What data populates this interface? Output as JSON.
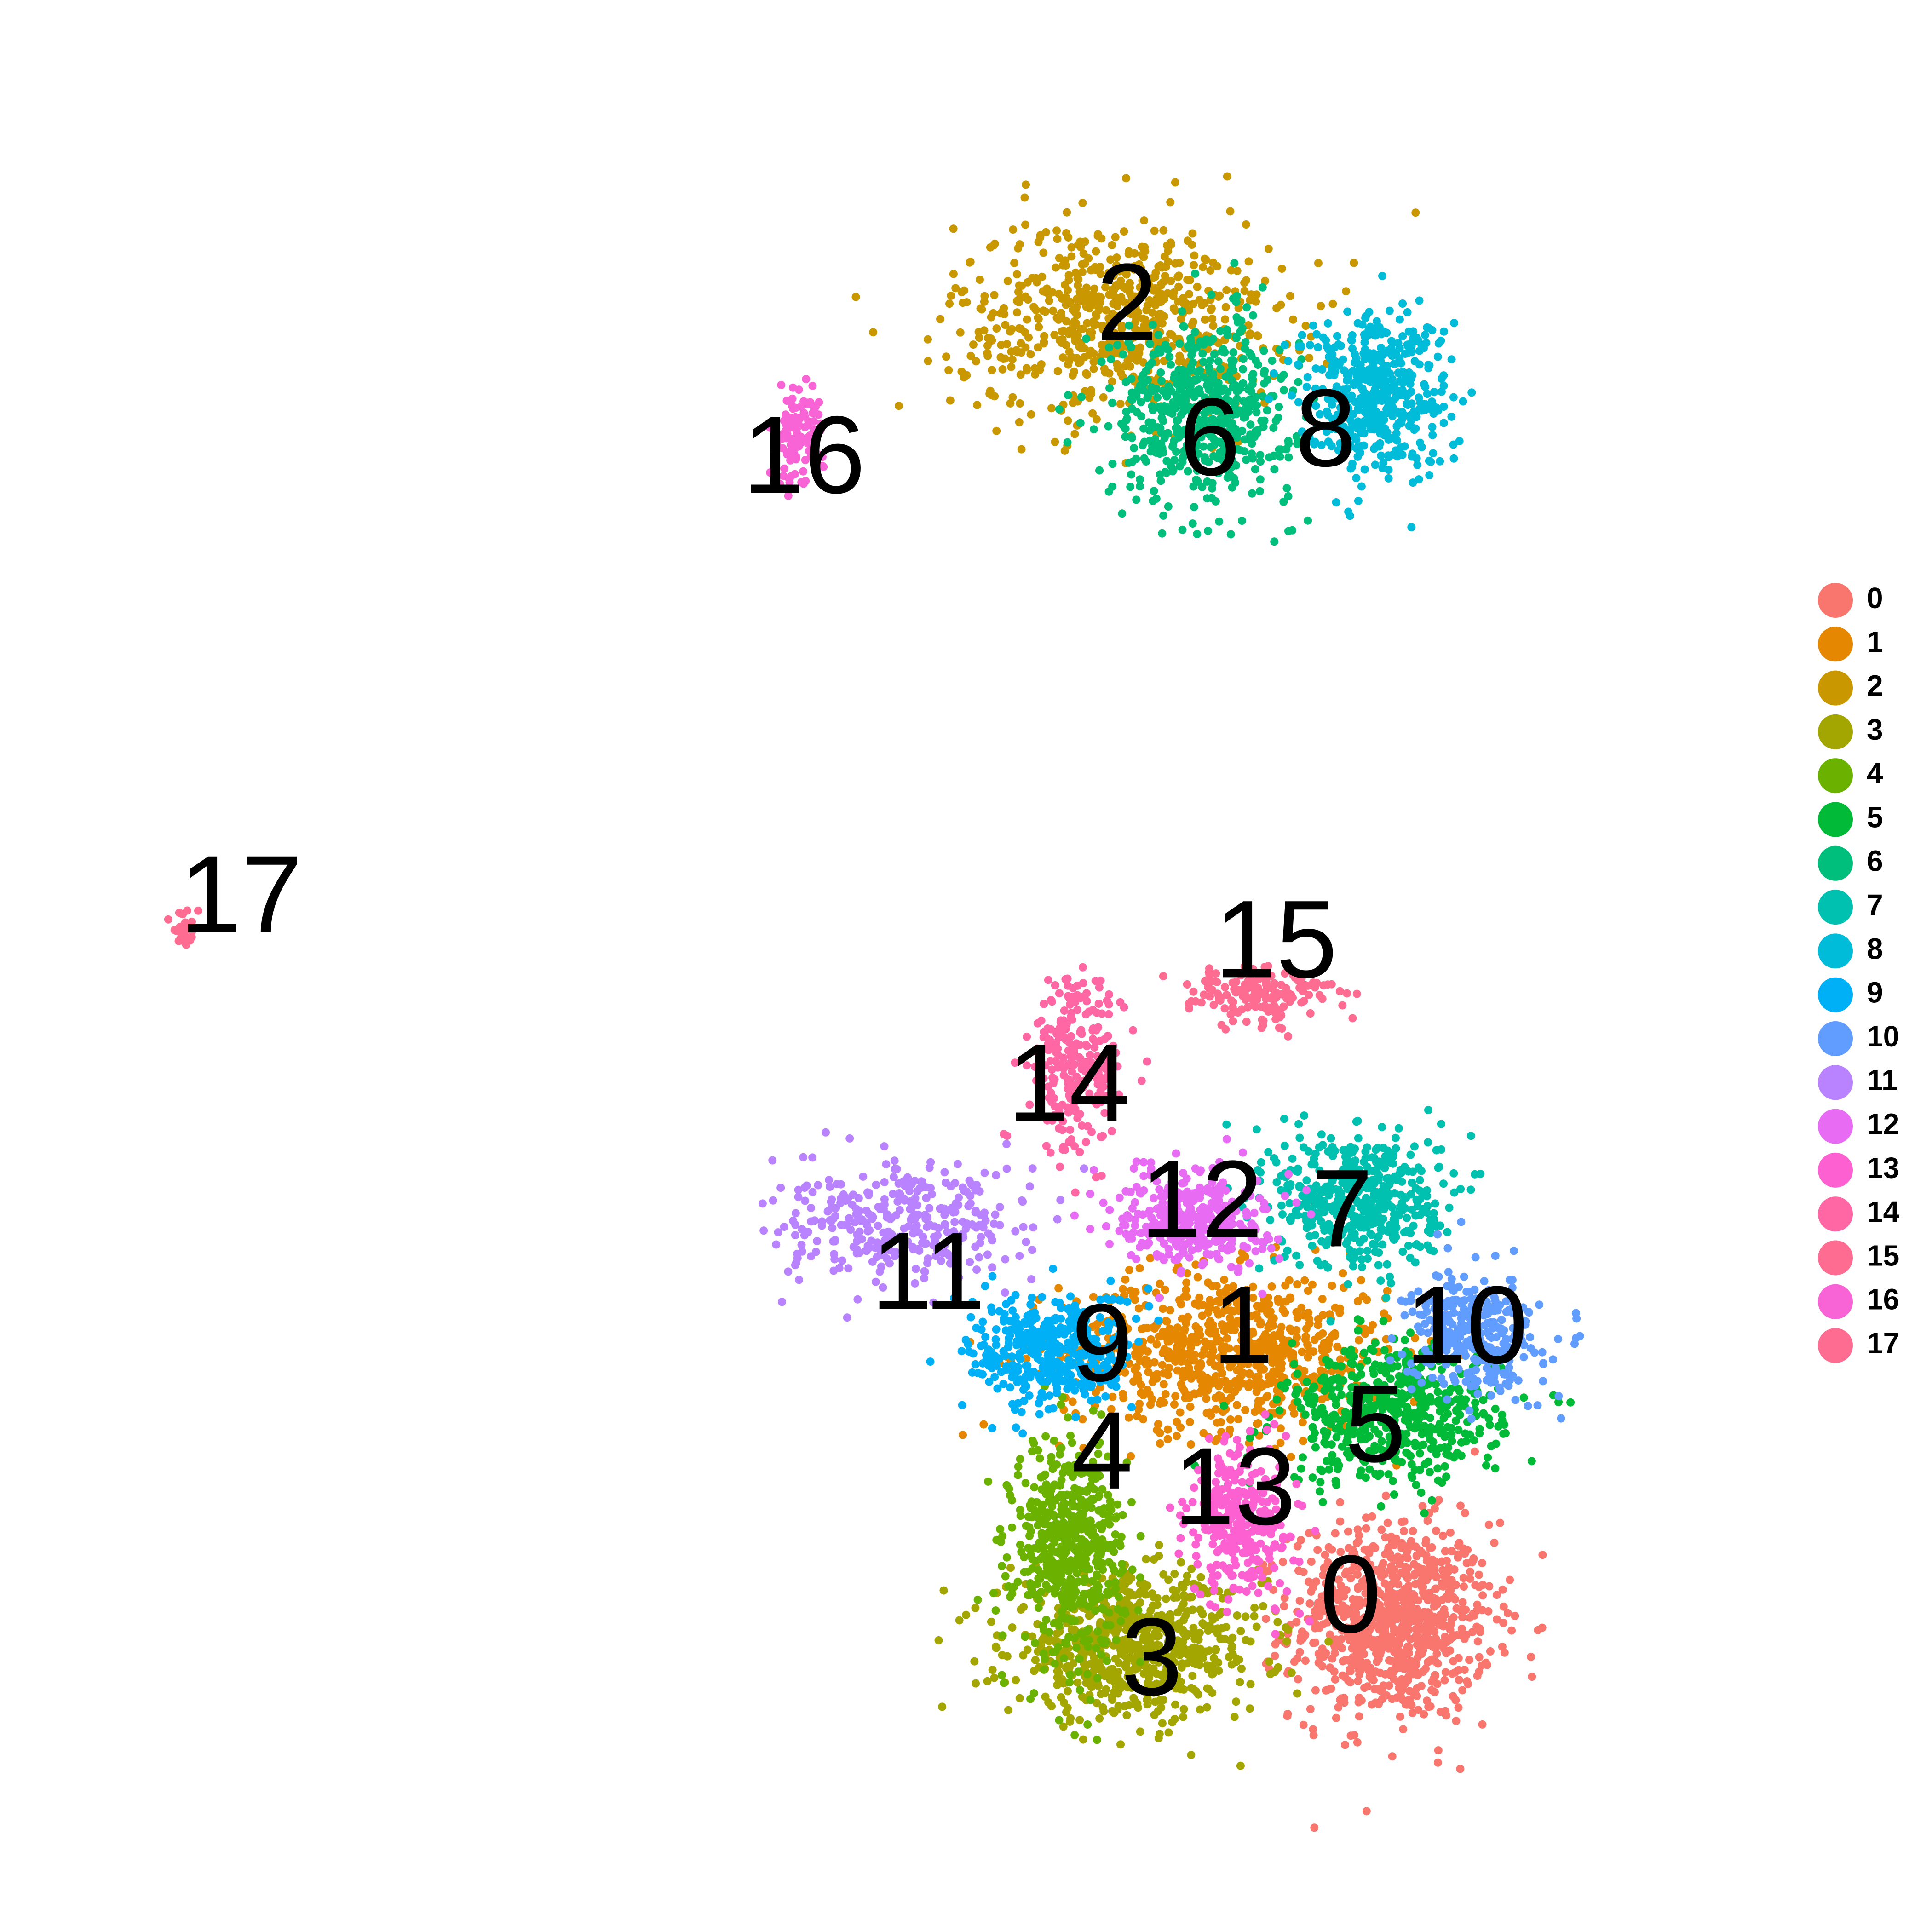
{
  "chart_data": {
    "type": "scatter",
    "title": "",
    "xlabel": "",
    "ylabel": "",
    "xlim": [
      0,
      100
    ],
    "ylim": [
      0,
      100
    ],
    "grid": false,
    "axes_visible": false,
    "legend_placement": "right",
    "clusters": [
      {
        "name": "0",
        "color": "#F8766D",
        "center": [
          78.5,
          13.5
        ],
        "spread": [
          5.5,
          5.0
        ],
        "count": 900
      },
      {
        "name": "1",
        "color": "#E58700",
        "center": [
          68.5,
          28.5
        ],
        "spread": [
          9.0,
          4.0
        ],
        "count": 800
      },
      {
        "name": "2",
        "color": "#C99800",
        "center": [
          62.0,
          86.0
        ],
        "spread": [
          9.0,
          5.0
        ],
        "count": 700
      },
      {
        "name": "3",
        "color": "#A3A500",
        "center": [
          63.0,
          12.0
        ],
        "spread": [
          7.0,
          3.5
        ],
        "count": 700
      },
      {
        "name": "4",
        "color": "#6BB100",
        "center": [
          59.0,
          17.5
        ],
        "spread": [
          3.0,
          5.5
        ],
        "count": 550
      },
      {
        "name": "5",
        "color": "#00BA38",
        "center": [
          78.5,
          25.0
        ],
        "spread": [
          6.0,
          3.5
        ],
        "count": 550
      },
      {
        "name": "6",
        "color": "#00BF7D",
        "center": [
          67.0,
          81.0
        ],
        "spread": [
          5.0,
          4.5
        ],
        "count": 550
      },
      {
        "name": "7",
        "color": "#00C0AF",
        "center": [
          76.5,
          37.0
        ],
        "spread": [
          4.5,
          3.5
        ],
        "count": 500
      },
      {
        "name": "8",
        "color": "#00BCD8",
        "center": [
          77.5,
          82.0
        ],
        "spread": [
          4.0,
          4.0
        ],
        "count": 500
      },
      {
        "name": "9",
        "color": "#00B0F6",
        "center": [
          58.0,
          28.5
        ],
        "spread": [
          4.5,
          3.0
        ],
        "count": 400
      },
      {
        "name": "10",
        "color": "#619CFF",
        "center": [
          83.5,
          29.5
        ],
        "spread": [
          3.5,
          3.0
        ],
        "count": 350
      },
      {
        "name": "11",
        "color": "#B983FF",
        "center": [
          49.0,
          35.5
        ],
        "spread": [
          7.0,
          3.0
        ],
        "count": 350
      },
      {
        "name": "12",
        "color": "#E76BF3",
        "center": [
          66.5,
          36.0
        ],
        "spread": [
          4.0,
          2.5
        ],
        "count": 350
      },
      {
        "name": "13",
        "color": "#FD61D1",
        "center": [
          69.5,
          19.0
        ],
        "spread": [
          3.0,
          4.0
        ],
        "count": 300
      },
      {
        "name": "14",
        "color": "#FF67A4",
        "center": [
          59.5,
          44.5
        ],
        "spread": [
          2.5,
          4.5
        ],
        "count": 250
      },
      {
        "name": "15",
        "color": "#FF6C91",
        "center": [
          70.5,
          48.5
        ],
        "spread": [
          4.0,
          1.5
        ],
        "count": 160
      },
      {
        "name": "16",
        "color": "#F863D6",
        "center": [
          42.5,
          79.5
        ],
        "spread": [
          1.5,
          2.5
        ],
        "count": 120
      },
      {
        "name": "17",
        "color": "#FF6C91",
        "center": [
          5.5,
          52.0
        ],
        "spread": [
          0.6,
          0.8
        ],
        "count": 40
      }
    ],
    "labels": [
      {
        "text": "0",
        "x": 76.0,
        "y": 14.5
      },
      {
        "text": "1",
        "x": 69.5,
        "y": 29.5
      },
      {
        "text": "2",
        "x": 62.5,
        "y": 86.5
      },
      {
        "text": "3",
        "x": 64.0,
        "y": 11.0
      },
      {
        "text": "4",
        "x": 61.0,
        "y": 22.5
      },
      {
        "text": "5",
        "x": 77.5,
        "y": 24.0
      },
      {
        "text": "6",
        "x": 67.5,
        "y": 79.0
      },
      {
        "text": "7",
        "x": 75.5,
        "y": 36.0
      },
      {
        "text": "8",
        "x": 74.5,
        "y": 79.5
      },
      {
        "text": "9",
        "x": 61.0,
        "y": 28.5
      },
      {
        "text": "10",
        "x": 83.0,
        "y": 29.5
      },
      {
        "text": "11",
        "x": 50.5,
        "y": 32.5
      },
      {
        "text": "12",
        "x": 67.0,
        "y": 36.5
      },
      {
        "text": "13",
        "x": 69.0,
        "y": 20.5
      },
      {
        "text": "14",
        "x": 59.0,
        "y": 43.0
      },
      {
        "text": "15",
        "x": 71.5,
        "y": 51.0
      },
      {
        "text": "16",
        "x": 43.0,
        "y": 78.0
      },
      {
        "text": "17",
        "x": 9.0,
        "y": 53.5
      }
    ],
    "legend": [
      {
        "label": "0",
        "color": "#F8766D"
      },
      {
        "label": "1",
        "color": "#E58700"
      },
      {
        "label": "2",
        "color": "#C99800"
      },
      {
        "label": "3",
        "color": "#A3A500"
      },
      {
        "label": "4",
        "color": "#6BB100"
      },
      {
        "label": "5",
        "color": "#00BA38"
      },
      {
        "label": "6",
        "color": "#00BF7D"
      },
      {
        "label": "7",
        "color": "#00C0AF"
      },
      {
        "label": "8",
        "color": "#00BCD8"
      },
      {
        "label": "9",
        "color": "#00B0F6"
      },
      {
        "label": "10",
        "color": "#619CFF"
      },
      {
        "label": "11",
        "color": "#B983FF"
      },
      {
        "label": "12",
        "color": "#E76BF3"
      },
      {
        "label": "13",
        "color": "#FD61D1"
      },
      {
        "label": "14",
        "color": "#FF67A4"
      },
      {
        "label": "15",
        "color": "#FF6C91"
      },
      {
        "label": "16",
        "color": "#F863D6"
      },
      {
        "label": "17",
        "color": "#FF6C91"
      }
    ]
  }
}
